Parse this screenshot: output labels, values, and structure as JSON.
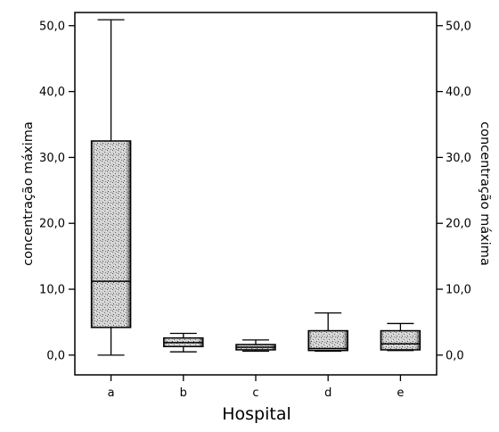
{
  "chart_data": {
    "type": "boxplot",
    "xlabel": "Hospital",
    "ylabel_left": "concentração máxima",
    "ylabel_right": "concentração máxima",
    "ylim": [
      -3,
      52
    ],
    "yticks": [
      0,
      10,
      20,
      30,
      40,
      50
    ],
    "ytick_labels": [
      "0,0",
      "10,0",
      "20,0",
      "30,0",
      "40,0",
      "50,0"
    ],
    "grid": false,
    "categories": [
      "a",
      "b",
      "c",
      "d",
      "e"
    ],
    "boxes": [
      {
        "category": "a",
        "min": 0.0,
        "q1": 4.2,
        "median": 11.2,
        "q3": 32.5,
        "max": 50.9
      },
      {
        "category": "b",
        "min": 0.5,
        "q1": 1.3,
        "median": 1.9,
        "q3": 2.6,
        "max": 3.3
      },
      {
        "category": "c",
        "min": 0.6,
        "q1": 0.8,
        "median": 1.2,
        "q3": 1.6,
        "max": 2.3
      },
      {
        "category": "d",
        "min": 0.6,
        "q1": 0.7,
        "median": 1.0,
        "q3": 3.7,
        "max": 6.4
      },
      {
        "category": "e",
        "min": 0.7,
        "q1": 0.8,
        "median": 1.7,
        "q3": 3.7,
        "max": 4.8
      }
    ]
  }
}
